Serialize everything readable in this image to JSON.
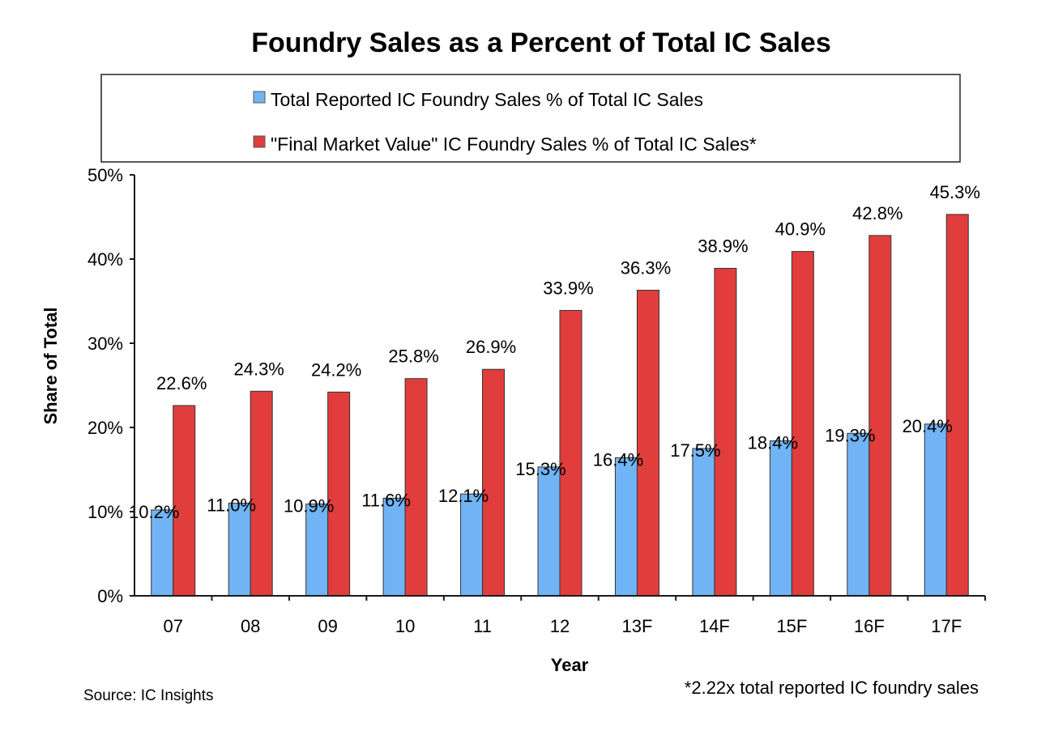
{
  "colors": {
    "series_1": "#71b4f5",
    "series_2": "#e13d3d",
    "axis": "#1a1a1a"
  },
  "chart_data": {
    "type": "bar",
    "title": "Foundry Sales as a Percent of Total IC Sales",
    "xlabel": "Year",
    "ylabel": "Share of Total",
    "ylim": [
      0,
      50
    ],
    "yticks": [
      "0%",
      "10%",
      "20%",
      "30%",
      "40%",
      "50%"
    ],
    "grid": false,
    "legend_position": "top",
    "categories": [
      "07",
      "08",
      "09",
      "10",
      "11",
      "12",
      "13F",
      "14F",
      "15F",
      "16F",
      "17F"
    ],
    "series": [
      {
        "name": "Total Reported IC Foundry Sales % of Total IC Sales",
        "color": "#71b4f5",
        "values": [
          10.2,
          11.0,
          10.9,
          11.6,
          12.1,
          15.3,
          16.4,
          17.5,
          18.4,
          19.3,
          20.4
        ],
        "labels": [
          "10.2%",
          "11.0%",
          "10.9%",
          "11.6%",
          "12.1%",
          "15.3%",
          "16.4%",
          "17.5%",
          "18.4%",
          "19.3%",
          "20.4%"
        ]
      },
      {
        "name": "\"Final Market Value\" IC Foundry Sales % of Total IC Sales*",
        "color": "#e13d3d",
        "values": [
          22.6,
          24.3,
          24.2,
          25.8,
          26.9,
          33.9,
          36.3,
          38.9,
          40.9,
          42.8,
          45.3
        ],
        "labels": [
          "22.6%",
          "24.3%",
          "24.2%",
          "25.8%",
          "26.9%",
          "33.9%",
          "36.3%",
          "38.9%",
          "40.9%",
          "42.8%",
          "45.3%"
        ]
      }
    ],
    "footnote": "*2.22x total reported IC foundry sales",
    "source": "Source: IC Insights"
  }
}
